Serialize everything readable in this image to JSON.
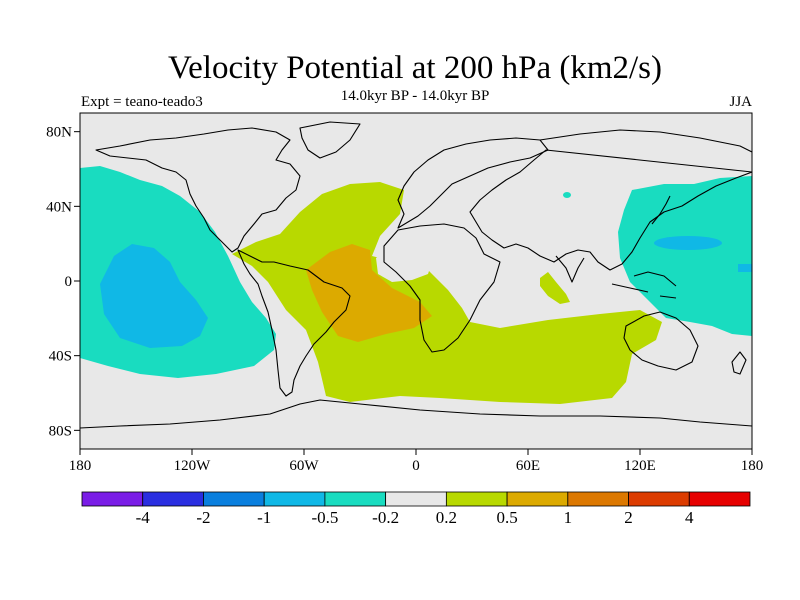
{
  "title": "Velocity Potential at 200 hPa (km2/s)",
  "subtitle": "14.0kyr BP - 14.0kyr BP",
  "left_label": "Expt = teano-teado3",
  "right_label": "JJA",
  "lat_ticks": [
    "80N",
    "40N",
    "0",
    "40S",
    "80S"
  ],
  "lon_ticks": [
    "180",
    "120W",
    "60W",
    "0",
    "60E",
    "120E",
    "180"
  ],
  "colorbar": {
    "colors": [
      "#7a1de6",
      "#2a2ee0",
      "#0a7fde",
      "#10b8e6",
      "#19dcc0",
      "#e8e8e8",
      "#b8d900",
      "#dcaa00",
      "#dc7800",
      "#dc3c00",
      "#e60000"
    ],
    "labels": [
      "-4",
      "-2",
      "-1",
      "-0.5",
      "-0.2",
      "0.2",
      "0.5",
      "1",
      "2",
      "4"
    ]
  },
  "map": {
    "background": "#e8e8e8",
    "regions": [
      {
        "name": "pacific-negative-region",
        "level": "-0.5 to -0.2",
        "color": "#19dcc0"
      },
      {
        "name": "pacific-core-region",
        "level": "-1 to -0.5",
        "color": "#10b8e6"
      },
      {
        "name": "west-pacific-negative-region",
        "level": "-0.5 to -0.2",
        "color": "#19dcc0"
      },
      {
        "name": "atlantic-positive-region",
        "level": "0.2 to 0.5",
        "color": "#b8d900"
      },
      {
        "name": "south-atlantic-core-region",
        "level": "0.5 to 1",
        "color": "#dcaa00"
      }
    ]
  }
}
